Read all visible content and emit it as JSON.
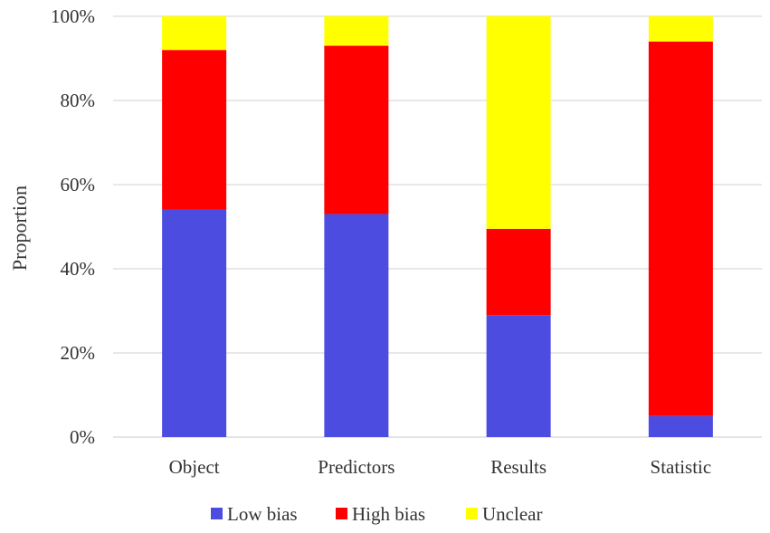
{
  "chart_data": {
    "type": "bar",
    "stacked": true,
    "percent_axis": true,
    "categories": [
      "Object",
      "Predictors",
      "Results",
      "Statistic"
    ],
    "series": [
      {
        "name": "Low bias",
        "color": "#4C4CE0",
        "values": [
          54,
          53,
          29,
          5
        ]
      },
      {
        "name": "High bias",
        "color": "#FF0000",
        "values": [
          38,
          40,
          20.5,
          89
        ]
      },
      {
        "name": "Unclear",
        "color": "#FFFF00",
        "values": [
          8,
          7,
          50.5,
          6
        ]
      }
    ],
    "ylabel": "Proportion",
    "xlabel": "",
    "ylim": [
      0,
      100
    ],
    "yticks": [
      "0%",
      "20%",
      "40%",
      "60%",
      "80%",
      "100%"
    ],
    "ytick_values": [
      0,
      20,
      40,
      60,
      80,
      100
    ],
    "grid": true,
    "legend_position": "bottom"
  }
}
